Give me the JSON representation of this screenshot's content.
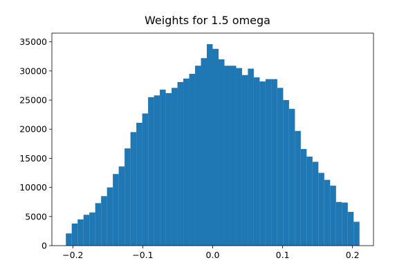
{
  "chart_data": {
    "type": "bar",
    "subtype": "histogram",
    "title": "Weights for 1.5 omega",
    "xlabel": "",
    "ylabel": "",
    "bar_color": "#1f77b4",
    "xlim": [
      -0.23,
      0.23
    ],
    "ylim": [
      0,
      36500
    ],
    "x_ticks": [
      -0.2,
      -0.1,
      0.0,
      0.1,
      0.2
    ],
    "x_tick_labels": [
      "−0.2",
      "−0.1",
      "0.0",
      "0.1",
      "0.2"
    ],
    "y_ticks": [
      0,
      5000,
      10000,
      15000,
      20000,
      25000,
      30000,
      35000
    ],
    "y_tick_labels": [
      "0",
      "5000",
      "10000",
      "15000",
      "20000",
      "25000",
      "30000",
      "35000"
    ],
    "grid": false,
    "legend": "none",
    "bin_start": -0.21,
    "bin_end": 0.21,
    "bin_count": 50,
    "values": [
      2100,
      3800,
      4500,
      5300,
      5700,
      7300,
      8500,
      10000,
      12300,
      13600,
      16700,
      19500,
      21100,
      22700,
      25500,
      25800,
      26800,
      26200,
      27100,
      28100,
      28700,
      29500,
      30900,
      32200,
      34600,
      33800,
      32000,
      30900,
      30900,
      30500,
      29300,
      30400,
      28900,
      28200,
      28600,
      28600,
      27100,
      25000,
      23500,
      19700,
      16600,
      15300,
      14400,
      12500,
      11300,
      10300,
      7500,
      7400,
      5800,
      4100
    ]
  }
}
